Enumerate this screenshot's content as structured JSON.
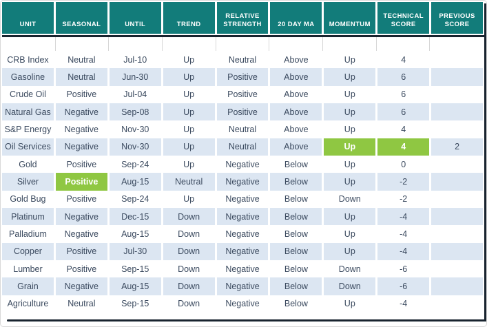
{
  "title": "Commodity technical score table",
  "colors": {
    "header_bg": "#127c7a",
    "header_text": "#ffffff",
    "highlight_green": "#8fc742",
    "stripe_blue": "#dce6f2",
    "body_text": "#3b4a5f",
    "thick_border": "#19242f",
    "gridline": "#d6d6d6"
  },
  "chart_data": {
    "type": "table",
    "columns": [
      "UNIT",
      "SEASONAL",
      "UNTIL",
      "TREND",
      "RELATIVE STRENGTH",
      "20 DAY MA",
      "MOMENTUM",
      "TECHNICAL SCORE",
      "PREVIOUS SCORE"
    ],
    "rows": [
      {
        "cells": [
          "CRB Index",
          "Neutral",
          "Jul-10",
          "Up",
          "Neutral",
          "Above",
          "Up",
          "4",
          ""
        ],
        "green_cells": []
      },
      {
        "cells": [
          "Gasoline",
          "Neutral",
          "Jun-30",
          "Up",
          "Positive",
          "Above",
          "Up",
          "6",
          ""
        ],
        "green_cells": []
      },
      {
        "cells": [
          "Crude Oil",
          "Positive",
          "Jul-04",
          "Up",
          "Positive",
          "Above",
          "Up",
          "6",
          ""
        ],
        "green_cells": []
      },
      {
        "cells": [
          "Natural Gas",
          "Negative",
          "Sep-08",
          "Up",
          "Positive",
          "Above",
          "Up",
          "6",
          ""
        ],
        "green_cells": []
      },
      {
        "cells": [
          "S&P Energy",
          "Negative",
          "Nov-30",
          "Up",
          "Neutral",
          "Above",
          "Up",
          "4",
          ""
        ],
        "green_cells": []
      },
      {
        "cells": [
          "Oil Services",
          "Negative",
          "Nov-30",
          "Up",
          "Neutral",
          "Above",
          "Up",
          "4",
          "2"
        ],
        "green_cells": [
          6,
          7
        ]
      },
      {
        "cells": [
          "Gold",
          "Positive",
          "Sep-24",
          "Up",
          "Negative",
          "Below",
          "Up",
          "0",
          ""
        ],
        "green_cells": []
      },
      {
        "cells": [
          "Silver",
          "Positive",
          "Aug-15",
          "Neutral",
          "Negative",
          "Below",
          "Up",
          "-2",
          ""
        ],
        "green_cells": [
          1
        ]
      },
      {
        "cells": [
          "Gold Bug",
          "Positive",
          "Sep-24",
          "Up",
          "Negative",
          "Below",
          "Down",
          "-2",
          ""
        ],
        "green_cells": []
      },
      {
        "cells": [
          "Platinum",
          "Negative",
          "Dec-15",
          "Down",
          "Negative",
          "Below",
          "Up",
          "-4",
          ""
        ],
        "green_cells": []
      },
      {
        "cells": [
          "Palladium",
          "Negative",
          "Aug-15",
          "Down",
          "Negative",
          "Below",
          "Up",
          "-4",
          ""
        ],
        "green_cells": []
      },
      {
        "cells": [
          "Copper",
          "Positive",
          "Jul-30",
          "Down",
          "Negative",
          "Below",
          "Up",
          "-4",
          ""
        ],
        "green_cells": []
      },
      {
        "cells": [
          "Lumber",
          "Positive",
          "Sep-15",
          "Down",
          "Negative",
          "Below",
          "Down",
          "-6",
          ""
        ],
        "green_cells": []
      },
      {
        "cells": [
          "Grain",
          "Negative",
          "Aug-15",
          "Down",
          "Negative",
          "Below",
          "Down",
          "-6",
          ""
        ],
        "green_cells": []
      },
      {
        "cells": [
          "Agriculture",
          "Neutral",
          "Sep-15",
          "Down",
          "Negative",
          "Below",
          "Up",
          "-4",
          ""
        ],
        "green_cells": []
      }
    ]
  }
}
